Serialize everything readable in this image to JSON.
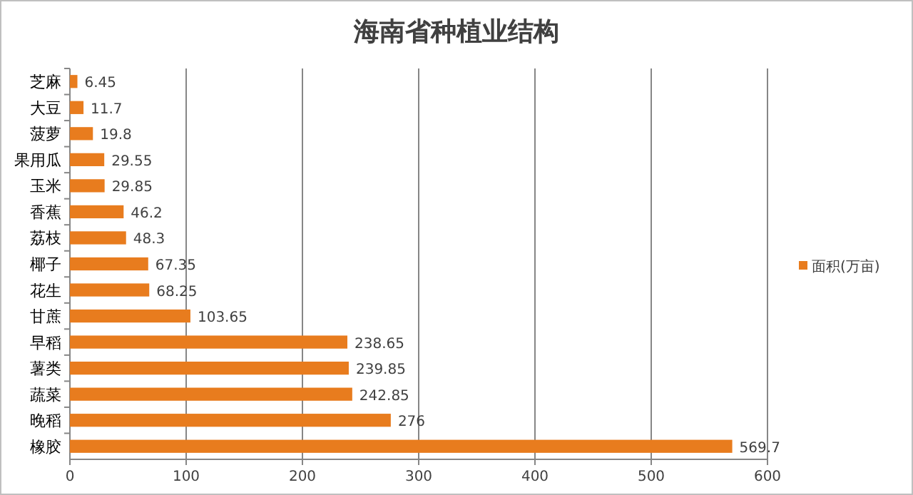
{
  "chart_data": {
    "type": "bar",
    "orientation": "horizontal",
    "title": "海南省种植业结构",
    "categories": [
      "芝麻",
      "大豆",
      "菠萝",
      "果用瓜",
      "玉米",
      "香蕉",
      "荔枝",
      "椰子",
      "花生",
      "甘蔗",
      "早稻",
      "薯类",
      "蔬菜",
      "晚稻",
      "橡胶"
    ],
    "series": [
      {
        "name": "面积(万亩)",
        "color": "#e87c1e",
        "values": [
          6.45,
          11.7,
          19.8,
          29.55,
          29.85,
          46.2,
          48.3,
          67.35,
          68.25,
          103.65,
          238.65,
          239.85,
          242.85,
          276,
          569.7
        ]
      }
    ],
    "data_labels": true,
    "xlim": [
      0,
      600
    ],
    "xticks": [
      0,
      100,
      200,
      300,
      400,
      500,
      600
    ],
    "grid": "x",
    "legend": "right"
  }
}
